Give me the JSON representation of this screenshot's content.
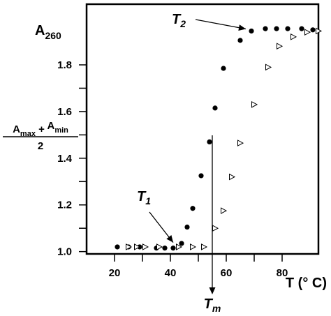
{
  "chart_data": {
    "type": "scatter",
    "xlabel": "T (° C)",
    "ylabel": "A260",
    "xlim": [
      10,
      93
    ],
    "ylim": [
      0.99,
      2.06
    ],
    "x_ticks": [
      20,
      40,
      60,
      80
    ],
    "y_ticks": [
      1.0,
      1.2,
      1.4,
      1.6,
      1.8
    ],
    "x_tick_labels": [
      "20",
      "40",
      "60",
      "80"
    ],
    "y_tick_labels": [
      "1.0",
      "1.2",
      "1.4",
      "1.6",
      "1.8"
    ],
    "series": [
      {
        "marker": "filled-circle",
        "color": "#000000",
        "x": [
          21,
          25,
          29,
          35,
          38,
          41,
          44,
          46,
          48,
          51,
          54,
          56,
          59,
          65,
          69,
          74,
          78,
          82,
          87,
          91
        ],
        "y": [
          1.02,
          1.02,
          1.02,
          1.015,
          1.015,
          1.015,
          1.035,
          1.105,
          1.185,
          1.325,
          1.47,
          1.615,
          1.785,
          1.905,
          1.945,
          1.955,
          1.955,
          1.955,
          1.955,
          1.95
        ]
      },
      {
        "marker": "open-triangle",
        "color": "#000000",
        "x": [
          25,
          28,
          31,
          36,
          43,
          48,
          52,
          56,
          59,
          62,
          65,
          70,
          75,
          79,
          84,
          89,
          93
        ],
        "y": [
          1.02,
          1.02,
          1.02,
          1.02,
          1.02,
          1.02,
          1.02,
          1.1,
          1.175,
          1.32,
          1.465,
          1.63,
          1.79,
          1.88,
          1.92,
          1.94,
          1.945
        ]
      }
    ],
    "annotations": {
      "mid_label_top": "Amax + Amin",
      "mid_label_bottom": "2",
      "mid_value": 1.48,
      "t1_label": "T1",
      "t2_label": "T2",
      "tm_label": "Tm",
      "tm_x": 55
    }
  }
}
